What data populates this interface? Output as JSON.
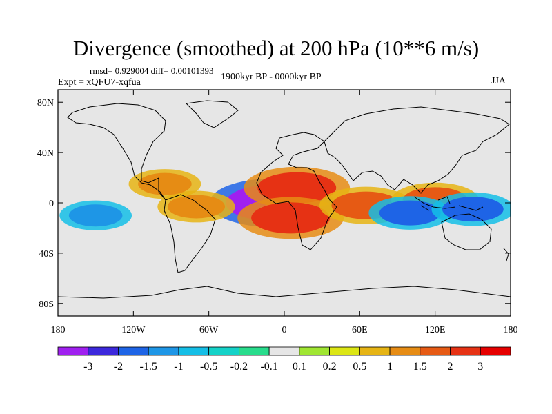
{
  "chart_data": {
    "type": "heatmap",
    "title": "Divergence (smoothed) at 200 hPa (10**6 m/s)",
    "stats": "rmsd= 0.929004 diff= 0.00101393",
    "experiment": "Expt = xQFU7-xqfua",
    "period": "1900kyr BP - 0000kyr BP",
    "season": "JJA",
    "x_ticks": [
      "180",
      "120W",
      "60W",
      "0",
      "60E",
      "120E",
      "180"
    ],
    "x_values": [
      -180,
      -120,
      -60,
      0,
      60,
      120,
      180
    ],
    "y_ticks": [
      "80N",
      "40N",
      "0",
      "40S",
      "80S"
    ],
    "y_values": [
      80,
      40,
      0,
      -40,
      -80
    ],
    "xlim": [
      -180,
      180
    ],
    "ylim": [
      -90,
      90
    ],
    "colorbar": {
      "labels": [
        "-3",
        "-2",
        "-1.5",
        "-1",
        "-0.5",
        "-0.2",
        "-0.1",
        "0.1",
        "0.2",
        "0.5",
        "1",
        "1.5",
        "2",
        "3"
      ],
      "colors": [
        "#a020f0",
        "#3c28dc",
        "#1e64e6",
        "#1e96e6",
        "#14bee6",
        "#14d2c8",
        "#28dc8c",
        "#e6e6e6",
        "#a0e632",
        "#dce614",
        "#e6b414",
        "#e68c14",
        "#e65a14",
        "#e63214",
        "#e60000"
      ]
    },
    "features": [
      {
        "name": "strong-convergence-atlantic",
        "lon": -10,
        "lat": 0,
        "value": -3.2
      },
      {
        "name": "divergence-africa",
        "lon": 10,
        "lat": 12,
        "value": 2.5
      },
      {
        "name": "divergence-south-atlantic",
        "lon": 5,
        "lat": -12,
        "value": 2.5
      },
      {
        "name": "divergence-indian-ocean",
        "lon": 65,
        "lat": -2,
        "value": 2.0
      },
      {
        "name": "divergence-maritime-continent",
        "lon": 120,
        "lat": 2,
        "value": 1.8
      },
      {
        "name": "convergence-indian-ocean",
        "lon": 100,
        "lat": -8,
        "value": -1.6
      },
      {
        "name": "convergence-west-pacific",
        "lon": 150,
        "lat": -5,
        "value": -1.6
      },
      {
        "name": "convergence-east-pacific",
        "lon": -150,
        "lat": -10,
        "value": -1.2
      },
      {
        "name": "divergence-south-america",
        "lon": -70,
        "lat": -3,
        "value": 1.4
      },
      {
        "name": "divergence-central-america",
        "lon": -95,
        "lat": 15,
        "value": 1.2
      }
    ]
  }
}
